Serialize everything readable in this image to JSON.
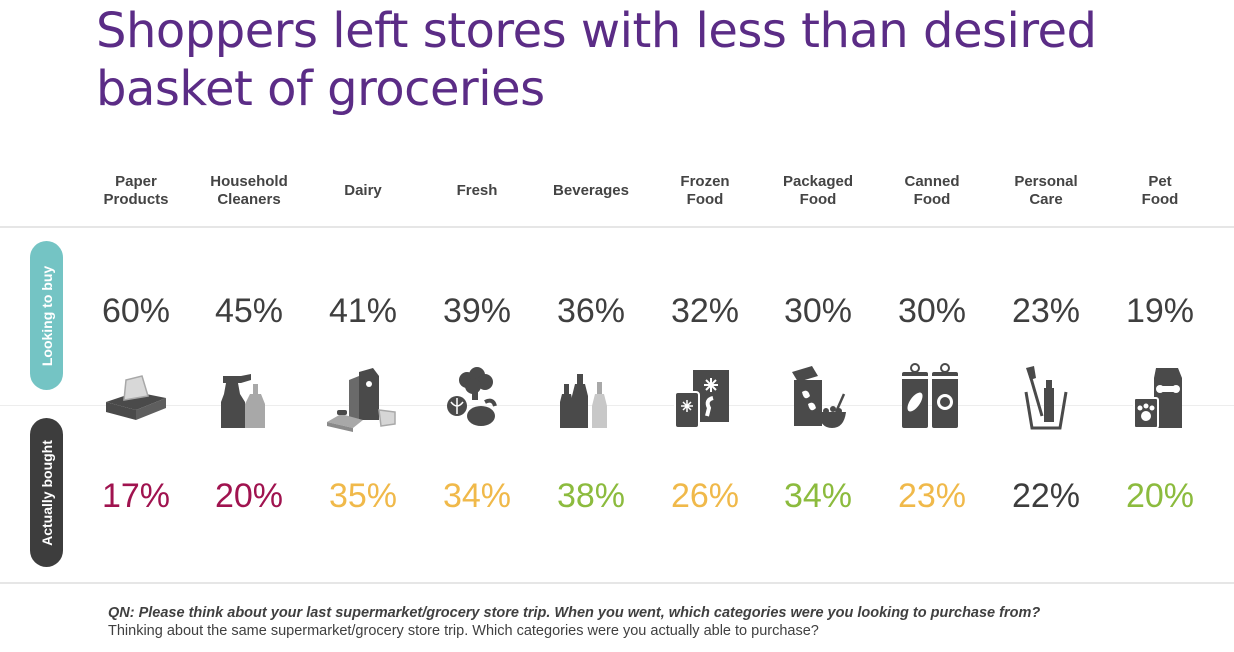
{
  "title_lines": [
    "Shoppers left stores with less than desired",
    "basket of groceries"
  ],
  "row_labels": {
    "looking": "Looking to buy",
    "bought": "Actually bought"
  },
  "chart_data": {
    "type": "table",
    "title": "Shoppers left stores with less than desired basket of groceries",
    "categories": [
      {
        "lines": [
          "Paper",
          "Products"
        ],
        "icon": "tissue-box-icon"
      },
      {
        "lines": [
          "Household",
          "Cleaners"
        ],
        "icon": "spray-bottle-icon"
      },
      {
        "lines": [
          "Dairy"
        ],
        "icon": "milk-cheese-icon"
      },
      {
        "lines": [
          "Fresh"
        ],
        "icon": "vegetables-icon"
      },
      {
        "lines": [
          "Beverages"
        ],
        "icon": "bottles-icon"
      },
      {
        "lines": [
          "Frozen",
          "Food"
        ],
        "icon": "frozen-food-icon"
      },
      {
        "lines": [
          "Packaged",
          "Food"
        ],
        "icon": "cereal-box-icon"
      },
      {
        "lines": [
          "Canned",
          "Food"
        ],
        "icon": "cans-icon"
      },
      {
        "lines": [
          "Personal",
          "Care"
        ],
        "icon": "toothbrush-icon"
      },
      {
        "lines": [
          "Pet",
          "Food"
        ],
        "icon": "pet-food-icon"
      }
    ],
    "series": [
      {
        "name": "Looking to buy",
        "values": [
          60,
          45,
          41,
          39,
          36,
          32,
          30,
          30,
          23,
          19
        ],
        "labels": [
          "60%",
          "45%",
          "41%",
          "39%",
          "36%",
          "32%",
          "30%",
          "30%",
          "23%",
          "19%"
        ]
      },
      {
        "name": "Actually bought",
        "values": [
          17,
          20,
          35,
          34,
          38,
          26,
          34,
          23,
          22,
          20
        ],
        "labels": [
          "17%",
          "20%",
          "35%",
          "34%",
          "38%",
          "26%",
          "34%",
          "23%",
          "22%",
          "20%"
        ],
        "colors": [
          "#a0134f",
          "#a0134f",
          "#f0b94a",
          "#f0b94a",
          "#8cbb3e",
          "#f0b94a",
          "#8cbb3e",
          "#f0b94a",
          "#3d3d3d",
          "#8cbb3e"
        ]
      }
    ]
  },
  "footnote": {
    "question": "QN: Please think about your last supermarket/grocery store trip. When you went, which categories were you looking to purchase from?",
    "followup": "Thinking about the same supermarket/grocery store trip. Which categories were you actually able to purchase?"
  },
  "colors": {
    "title": "#5b2c86",
    "looking_pill": "#74c4c4",
    "bought_pill": "#3d3d3d",
    "icon_dark": "#4a4a4a",
    "icon_light": "#a8a8a8"
  }
}
